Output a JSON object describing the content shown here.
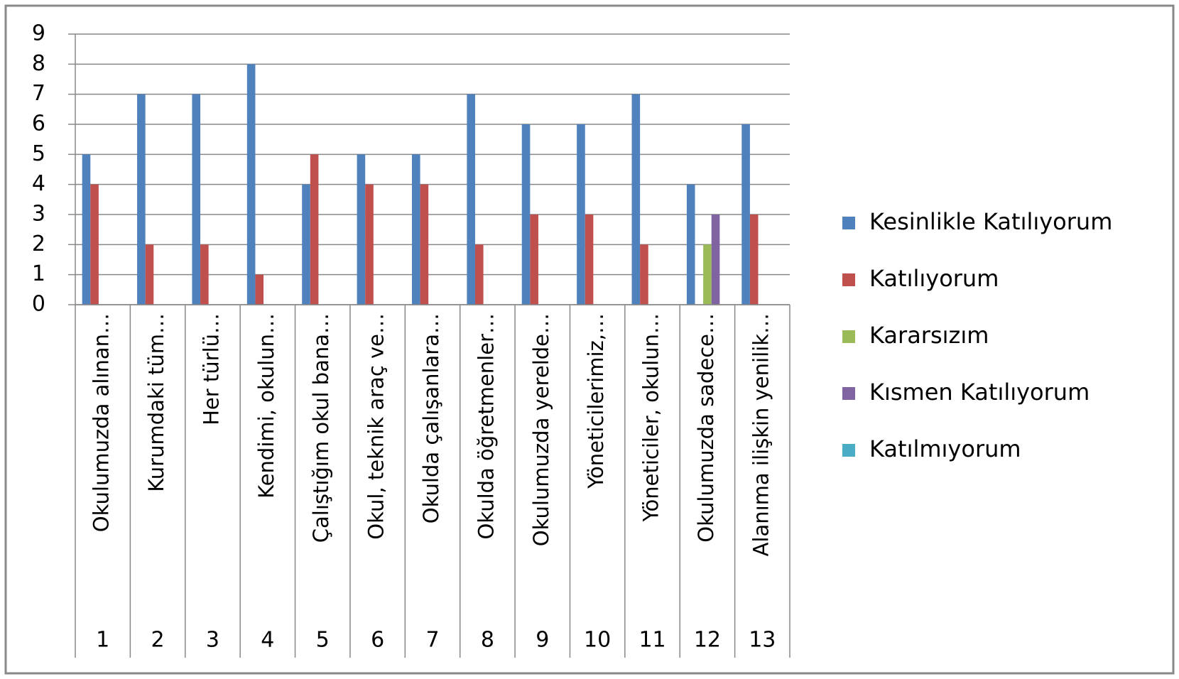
{
  "chart_data": {
    "type": "bar",
    "categories": [
      "Okulumuzda alınan…",
      "Kurumdaki tüm…",
      "Her türlü…",
      "Kendimi, okulun…",
      "Çalıştığım okul bana…",
      "Okul, teknik araç ve…",
      "Okulda çalışanlara…",
      "Okulda öğretmenler…",
      "Okulumuzda yerelde…",
      "Yöneticilerimiz,…",
      "Yöneticiler, okulun…",
      "Okulumuzda sadece…",
      "Alanıma ilişkin yenilik…"
    ],
    "groups": [
      "1",
      "2",
      "3",
      "4",
      "5",
      "6",
      "7",
      "8",
      "9",
      "10",
      "11",
      "12",
      "13"
    ],
    "series": [
      {
        "name": "Kesinlikle Katılıyorum",
        "color": "#4f81bd",
        "values": [
          5,
          7,
          7,
          8,
          4,
          5,
          5,
          7,
          6,
          6,
          7,
          4,
          6
        ]
      },
      {
        "name": "Katılıyorum",
        "color": "#c0504d",
        "values": [
          4,
          2,
          2,
          1,
          5,
          4,
          4,
          2,
          3,
          3,
          2,
          0,
          3
        ]
      },
      {
        "name": "Kararsızım",
        "color": "#9bbb59",
        "values": [
          0,
          0,
          0,
          0,
          0,
          0,
          0,
          0,
          0,
          0,
          0,
          2,
          0
        ]
      },
      {
        "name": "Kısmen Katılıyorum",
        "color": "#8064a2",
        "values": [
          0,
          0,
          0,
          0,
          0,
          0,
          0,
          0,
          0,
          0,
          0,
          3,
          0
        ]
      },
      {
        "name": "Katılmıyorum",
        "color": "#4bacc6",
        "values": [
          0,
          0,
          0,
          0,
          0,
          0,
          0,
          0,
          0,
          0,
          0,
          0,
          0
        ]
      }
    ],
    "ylim": [
      0,
      9
    ],
    "yticks": [
      0,
      1,
      2,
      3,
      4,
      5,
      6,
      7,
      8,
      9
    ],
    "grid": true,
    "legend": "right"
  }
}
